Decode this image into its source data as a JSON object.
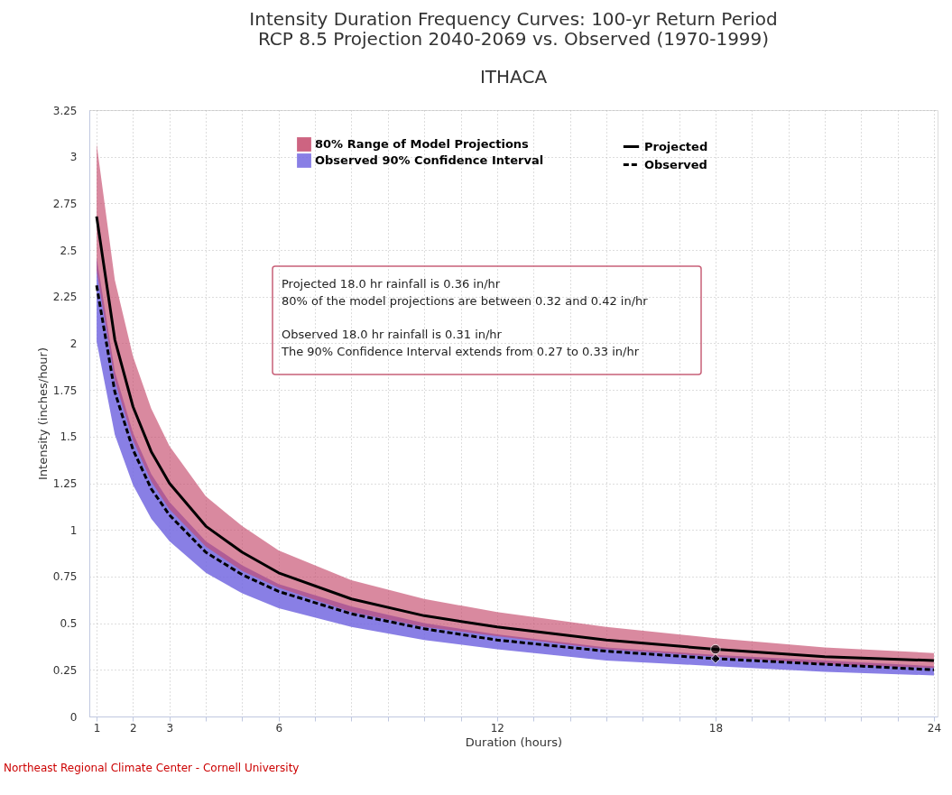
{
  "chart_data": {
    "type": "line",
    "title": "Intensity Duration Frequency Curves: 100-yr Return Period\nRCP 8.5 Projection 2040-2069 vs. Observed (1970-1999)",
    "subtitle": "ITHACA",
    "xlabel": "Duration (hours)",
    "ylabel": "Intensity (inches/hour)",
    "x": [
      1,
      1.5,
      2,
      2.5,
      3,
      4,
      5,
      6,
      8,
      10,
      12,
      15,
      18,
      21,
      24
    ],
    "series": [
      {
        "name": "80% Range of Model Projections",
        "type": "area",
        "color": "#c4496b",
        "values": [
          null,
          null,
          null,
          null,
          null,
          null,
          null,
          null,
          null,
          null,
          null,
          null,
          null,
          null,
          null
        ]
      },
      {
        "name": "Observed 90% Confidence Interval",
        "type": "area",
        "color": "#7469e0",
        "values": [
          null,
          null,
          null,
          null,
          null,
          null,
          null,
          null,
          null,
          null,
          null,
          null,
          null,
          null,
          null
        ]
      },
      {
        "name": "Projected",
        "color": "#000000",
        "line_style": "solid",
        "values": [
          2.68,
          2.02,
          1.66,
          1.42,
          1.25,
          1.02,
          0.88,
          0.77,
          0.63,
          0.54,
          0.48,
          0.41,
          0.36,
          0.32,
          0.3
        ],
        "lower": [
          2.39,
          1.8,
          1.48,
          1.26,
          1.11,
          0.91,
          0.78,
          0.69,
          0.56,
          0.48,
          0.43,
          0.36,
          0.32,
          0.28,
          0.26
        ],
        "upper": [
          3.07,
          2.34,
          1.93,
          1.65,
          1.45,
          1.18,
          1.02,
          0.89,
          0.73,
          0.63,
          0.56,
          0.48,
          0.42,
          0.37,
          0.34
        ]
      },
      {
        "name": "Observed",
        "color": "#000000",
        "line_style": "dashed",
        "values": [
          2.31,
          1.74,
          1.43,
          1.22,
          1.08,
          0.88,
          0.76,
          0.67,
          0.55,
          0.47,
          0.41,
          0.35,
          0.31,
          0.28,
          0.25
        ],
        "lower": [
          2.01,
          1.51,
          1.24,
          1.06,
          0.94,
          0.77,
          0.66,
          0.58,
          0.48,
          0.41,
          0.36,
          0.3,
          0.27,
          0.24,
          0.22
        ],
        "upper": [
          2.46,
          1.85,
          1.52,
          1.3,
          1.15,
          0.94,
          0.81,
          0.71,
          0.59,
          0.5,
          0.44,
          0.37,
          0.33,
          0.3,
          0.27
        ]
      },
      {
        "type": "scatter",
        "marker": "circle",
        "color": "#000000",
        "x": [
          18
        ],
        "values": [
          0.36
        ]
      },
      {
        "type": "scatter",
        "marker": "diamond",
        "color": "#000000",
        "x": [
          18
        ],
        "values": [
          0.31
        ]
      }
    ],
    "xlim": [
      0.8,
      24.1
    ],
    "xticks": [
      1,
      2,
      3,
      {
        "value": 4,
        "label": null
      },
      {
        "value": 5,
        "label": null
      },
      6,
      {
        "value": 7,
        "label": null
      },
      {
        "value": 8,
        "label": null
      },
      {
        "value": 9,
        "label": null
      },
      {
        "value": 10,
        "label": null
      },
      {
        "value": 11,
        "label": null
      },
      12,
      {
        "value": 13,
        "label": null
      },
      {
        "value": 14,
        "label": null
      },
      {
        "value": 15,
        "label": null
      },
      {
        "value": 16,
        "label": null
      },
      {
        "value": 17,
        "label": null
      },
      18,
      {
        "value": 19,
        "label": null
      },
      {
        "value": 20,
        "label": null
      },
      {
        "value": 21,
        "label": null
      },
      {
        "value": 22,
        "label": null
      },
      {
        "value": 23,
        "label": null
      },
      24
    ],
    "ylim": [
      0,
      3.25
    ],
    "yticks": [
      0,
      0.25,
      0.5,
      0.75,
      1,
      1.25,
      1.5,
      1.75,
      2,
      2.25,
      2.5,
      2.75,
      3,
      3.25
    ],
    "grid": true,
    "legend": "top",
    "annotations": [
      "Projected 18.0 hr rainfall is 0.36 in/hr",
      "80% of the model projections are between 0.32 and 0.42 in/hr",
      "Observed 18.0 hr rainfall is 0.31 in/hr",
      "The 90% Confidence Interval extends from 0.27 to 0.33 in/hr",
      "Northeast Regional Climate Center - Cornell University"
    ]
  }
}
